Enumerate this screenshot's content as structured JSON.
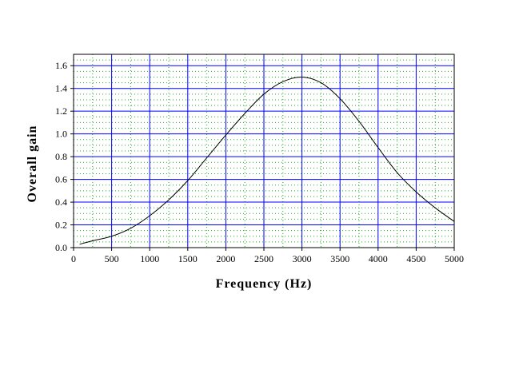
{
  "chart_data": {
    "type": "line",
    "title": "",
    "xlabel": "Frequency (Hz)",
    "ylabel": "Overall gain",
    "xlim": [
      0,
      5000
    ],
    "ylim": [
      0,
      1.7
    ],
    "x_ticks": [
      0,
      500,
      1000,
      1500,
      2000,
      2500,
      3000,
      3500,
      4000,
      4500,
      5000
    ],
    "x_tick_labels": [
      "0",
      "500",
      "1000",
      "1500",
      "2000",
      "2500",
      "3000",
      "3500",
      "4000",
      "4500",
      "5000"
    ],
    "y_ticks": [
      0,
      0.2,
      0.4,
      0.6,
      0.8,
      1.0,
      1.2,
      1.4,
      1.6
    ],
    "y_tick_labels": [
      "0.0",
      "0.2",
      "0.4",
      "0.6",
      "0.8",
      "1.0",
      "1.2",
      "1.4",
      "1.6"
    ],
    "grid": true,
    "colors": {
      "major_grid": "#0000ff",
      "minor_grid": "#22aa22",
      "plot_background": "#ffffff",
      "line": "#000000"
    },
    "series": [
      {
        "x": [
          80,
          250,
          500,
          750,
          1000,
          1250,
          1500,
          1750,
          2000,
          2250,
          2500,
          2750,
          3000,
          3250,
          3500,
          3750,
          4000,
          4250,
          4500,
          4750,
          5000
        ],
        "y": [
          0.03,
          0.06,
          0.1,
          0.17,
          0.28,
          0.42,
          0.59,
          0.79,
          0.99,
          1.18,
          1.35,
          1.46,
          1.5,
          1.45,
          1.31,
          1.11,
          0.88,
          0.66,
          0.49,
          0.35,
          0.23
        ]
      }
    ]
  }
}
